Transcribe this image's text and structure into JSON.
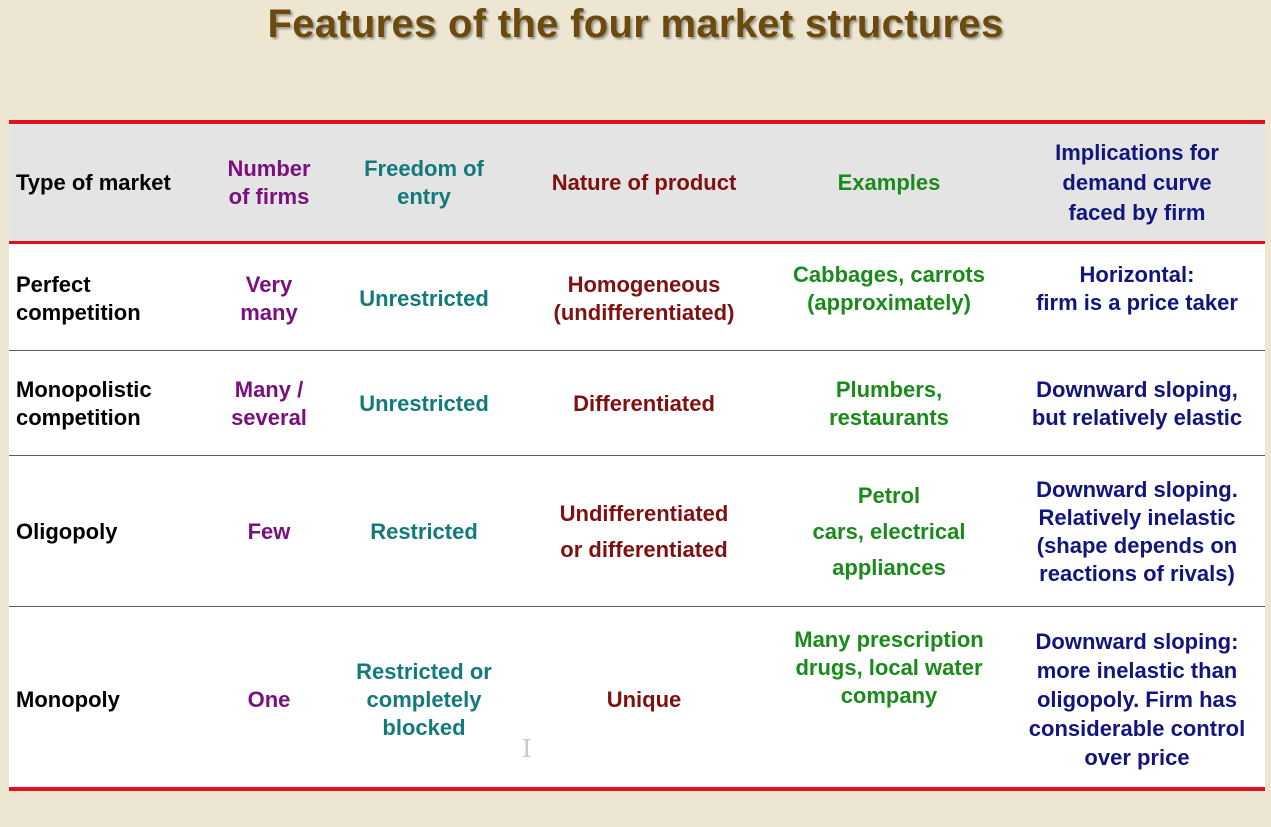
{
  "title": "Features of the four market structures",
  "headers": {
    "type": "Type of market",
    "number": "Number\nof firms",
    "freedom": "Freedom of\nentry",
    "nature": "Nature of product",
    "examples": "Examples",
    "implications": "Implications for\ndemand curve\nfaced by firm"
  },
  "rows": [
    {
      "type": "Perfect\n   competition",
      "number": "Very\nmany",
      "freedom": "Unrestricted",
      "nature": "Homogeneous\n(undifferentiated)",
      "examples": "Cabbages, carrots\n(approximately)",
      "implications": "Horizontal:\nfirm is a price taker"
    },
    {
      "type": "Monopolistic\n   competition",
      "number": "Many /\nseveral",
      "freedom": "Unrestricted",
      "nature": "Differentiated",
      "examples": "Plumbers,\nrestaurants",
      "implications": "Downward sloping,\nbut relatively elastic"
    },
    {
      "type": "Oligopoly",
      "number": "Few",
      "freedom": "Restricted",
      "nature": "Undifferentiated\nor differentiated",
      "examples": "Petrol\ncars, electrical\nappliances",
      "implications": "Downward sloping.\nRelatively inelastic\n(shape depends on\nreactions of rivals)"
    },
    {
      "type": "Monopoly",
      "number": "One",
      "freedom": "Restricted or\ncompletely\nblocked",
      "nature": "Unique",
      "examples": "Many prescription\ndrugs, local water\ncompany",
      "implications": "Downward sloping:\nmore inelastic than\noligopoly.  Firm has\nconsiderable control\nover price"
    }
  ],
  "colors": {
    "title": "#6b4a10",
    "rule": "#e3111b",
    "number": "#7a0f7e",
    "freedom": "#127a7a",
    "nature": "#7f1010",
    "examples": "#1a8a1a",
    "implications": "#11157d",
    "background": "#ece6d2"
  },
  "cursor_glyph": "I"
}
